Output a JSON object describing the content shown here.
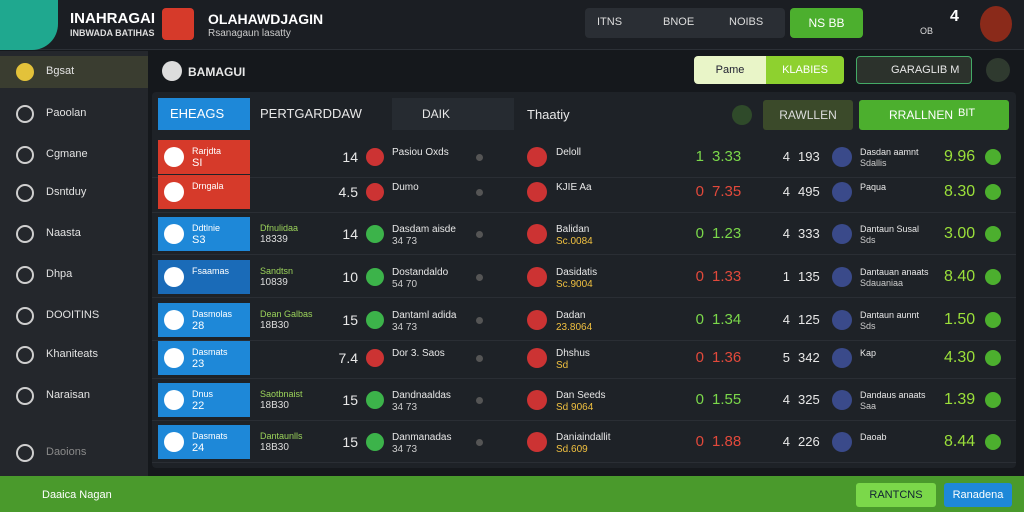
{
  "header": {
    "logo_title": "INAHRAGAI",
    "logo_subtitle": "INBWADA BATIHAS",
    "brand": "OLAHAWDJAGIN",
    "brand_subtitle": "Rsanagaun lasatty",
    "buttons": [
      "ITNS",
      "BNOE",
      "NOIBS"
    ],
    "cta": "NS BB",
    "counter": "4",
    "counter_sub": "OB"
  },
  "sidebar": {
    "items": [
      "Bgsat",
      "Paoolan",
      "Cgmane",
      "Dsntduy",
      "Naasta",
      "Dhpa",
      "DOOITINS",
      "Khaniteats",
      "Naraisan",
      "Daoions"
    ],
    "footer": "Daaica Nagan"
  },
  "toolbar": {
    "title": "BAMAGUI",
    "pill_left": "Pame",
    "pill_right": "KLABIES",
    "profile": "GARAGLIB M"
  },
  "left_panel": {
    "tabs": [
      "EHEAGS",
      "PERTGARDDAW"
    ],
    "search": "DAIK",
    "rows": [
      {
        "team": "Rarjdta",
        "code": "SI",
        "color": "#d63a2a",
        "league": "",
        "league_code": "",
        "score": "14",
        "event": "Pasiou Oxds",
        "event_sub": ""
      },
      {
        "team": "Drngala",
        "code": "",
        "color": "#d63a2a",
        "league": "",
        "league_code": "",
        "score": "4.5",
        "event": "Dumo",
        "event_sub": ""
      },
      {
        "team": "Ddtlnie",
        "code": "S3",
        "color": "#1e88d8",
        "league": "Dfnulidaa",
        "league_code": "18339",
        "score": "14",
        "event": "Dasdam aisde",
        "event_sub": "34 73"
      },
      {
        "team": "Fsaamas",
        "code": "",
        "color": "#1a6bb8",
        "league": "Sandtsn",
        "league_code": "10839",
        "score": "10",
        "event": "Dostandaldo",
        "event_sub": "54 70"
      },
      {
        "team": "Dasmolas",
        "code": "28",
        "color": "#1e88d8",
        "league": "Dean Galbas",
        "league_code": "18B30",
        "score": "15",
        "event": "Dantaml adida",
        "event_sub": "34 73"
      },
      {
        "team": "Dasmats",
        "code": "23",
        "color": "#1e88d8",
        "league": "",
        "league_code": "",
        "score": "7.4",
        "event": "Dor 3. Saos",
        "event_sub": ""
      },
      {
        "team": "Dnus",
        "code": "22",
        "color": "#1e88d8",
        "league": "Saotbnaist",
        "league_code": "18B30",
        "score": "15",
        "event": "Dandnaaldas",
        "event_sub": "34 73"
      },
      {
        "team": "Dasmats",
        "code": "24",
        "color": "#1e88d8",
        "league": "Dantaunlls",
        "league_code": "18B30",
        "score": "15",
        "event": "Danmanadas",
        "event_sub": "34 73"
      }
    ]
  },
  "right_panel": {
    "title": "Thaatiy",
    "filter": "RAWLLEN",
    "action": "RRALLNEN",
    "action_sub": "BIT",
    "rows": [
      {
        "home": "Deloll",
        "home_sub": "",
        "h_num": "1",
        "h_val": "3.33",
        "h_color": "#7bd84a",
        "a_num": "4",
        "a_val": "193",
        "away": "Dasdan aamnt",
        "away_sub": "Sdallis",
        "odds": "9.96"
      },
      {
        "home": "KJIE Aa",
        "home_sub": "",
        "h_num": "0",
        "h_val": "7.35",
        "h_color": "#e2493b",
        "a_num": "4",
        "a_val": "495",
        "away": "Paqua",
        "away_sub": "",
        "odds": "8.30"
      },
      {
        "home": "Balidan",
        "home_sub": "Sc.0084",
        "h_num": "0",
        "h_val": "1.23",
        "h_color": "#7bd84a",
        "a_num": "4",
        "a_val": "333",
        "away": "Dantaun Susal",
        "away_sub": "Sds",
        "odds": "3.00"
      },
      {
        "home": "Dasidatis",
        "home_sub": "Sc.9004",
        "h_num": "0",
        "h_val": "1.33",
        "h_color": "#e2493b",
        "a_num": "1",
        "a_val": "135",
        "away": "Dantauan anaats",
        "away_sub": "Sdauaniaa",
        "odds": "8.40"
      },
      {
        "home": "Dadan",
        "home_sub": "23.8064",
        "h_num": "0",
        "h_val": "1.34",
        "h_color": "#7bd84a",
        "a_num": "4",
        "a_val": "125",
        "away": "Dantaun aunnt",
        "away_sub": "Sds",
        "odds": "1.50"
      },
      {
        "home": "Dhshus",
        "home_sub": "Sd",
        "h_num": "0",
        "h_val": "1.36",
        "h_color": "#e2493b",
        "a_num": "5",
        "a_val": "342",
        "away": "Kap",
        "away_sub": "",
        "odds": "4.30"
      },
      {
        "home": "Dan Seeds",
        "home_sub": "Sd 9064",
        "h_num": "0",
        "h_val": "1.55",
        "h_color": "#7bd84a",
        "a_num": "4",
        "a_val": "325",
        "away": "Dandaus anaats",
        "away_sub": "Saa",
        "odds": "1.39"
      },
      {
        "home": "Daniaindallit",
        "home_sub": "Sd.609",
        "h_num": "0",
        "h_val": "1.88",
        "h_color": "#e2493b",
        "a_num": "4",
        "a_val": "226",
        "away": "Daoab",
        "away_sub": "",
        "odds": "8.44"
      }
    ]
  },
  "bottom_bar": {
    "left": "RANTCNS",
    "right": "Ranadena"
  }
}
